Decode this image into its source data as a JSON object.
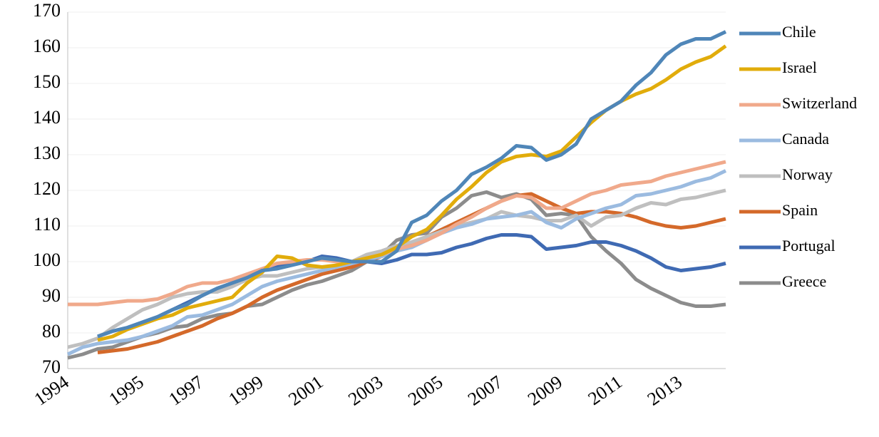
{
  "chart_data": {
    "type": "line",
    "categories": [
      "1994",
      null,
      null,
      null,
      null,
      "1995",
      null,
      null,
      null,
      "1997",
      null,
      null,
      null,
      "1999",
      null,
      null,
      null,
      "2001",
      null,
      null,
      null,
      "2003",
      null,
      null,
      null,
      "2005",
      null,
      null,
      null,
      "2007",
      null,
      null,
      null,
      "2009",
      null,
      null,
      null,
      "2011",
      null,
      null,
      null,
      "2013",
      null,
      null,
      null
    ],
    "ylim": [
      70,
      170
    ],
    "yticks": [
      70,
      80,
      90,
      100,
      110,
      120,
      130,
      140,
      150,
      160,
      170
    ],
    "grid": true,
    "legend": "right",
    "series": [
      {
        "name": "Chile",
        "color": "#4f86b8",
        "values": [
          null,
          null,
          79,
          80.5,
          81.5,
          83,
          84.5,
          86.5,
          88,
          90.5,
          92.5,
          94,
          95.5,
          97.5,
          98,
          99,
          100,
          101,
          100.5,
          100,
          100,
          100,
          103,
          111,
          113,
          117,
          120,
          124.5,
          126.5,
          129,
          132.5,
          132,
          128.5,
          130,
          133,
          140,
          142.5,
          145,
          149.5,
          153,
          158,
          161,
          162.5,
          162.5,
          164.5
        ]
      },
      {
        "name": "Israel",
        "color": "#e1ac0b",
        "values": [
          null,
          null,
          78,
          79,
          81,
          82.5,
          84,
          85,
          87,
          88,
          89,
          90,
          94,
          97,
          101.5,
          101,
          99,
          98.5,
          99,
          100,
          101,
          102,
          104,
          107,
          109,
          113,
          117.5,
          121,
          125,
          128,
          129.5,
          130,
          129.5,
          131,
          135,
          139,
          142.5,
          145,
          147,
          148.5,
          151,
          154,
          156,
          157.5,
          160.5
        ]
      },
      {
        "name": "Switzerland",
        "color": "#f0a98b",
        "values": [
          88,
          88,
          88,
          88.5,
          89,
          89,
          89.5,
          91,
          93,
          94,
          94,
          95,
          96.5,
          98,
          99.5,
          100,
          100.5,
          100.5,
          100,
          100,
          101,
          102,
          103.5,
          104.5,
          106,
          108,
          110.5,
          112.5,
          115,
          117,
          118.5,
          118,
          115,
          115,
          117,
          119,
          120,
          121.5,
          122,
          122.5,
          124,
          125,
          126,
          127,
          128
        ]
      },
      {
        "name": "Canada",
        "color": "#9bbbe0",
        "values": [
          74,
          76,
          77,
          77.5,
          78,
          79,
          80.5,
          82,
          84.5,
          85,
          86.5,
          88,
          90.5,
          93,
          94.5,
          95.5,
          96.5,
          97.5,
          98.5,
          99.5,
          100.5,
          101.5,
          103,
          104,
          106,
          108,
          109.5,
          110.5,
          112,
          112.5,
          113,
          114,
          111,
          109.5,
          112,
          113.5,
          115,
          116,
          118.5,
          119,
          120,
          121,
          122.5,
          123.5,
          125.5
        ]
      },
      {
        "name": "Norway",
        "color": "#bfbfbf",
        "values": [
          76,
          77,
          78.5,
          81.5,
          84,
          86.5,
          88,
          90,
          91,
          91.5,
          91.5,
          93,
          95,
          96,
          96,
          97,
          98,
          98.5,
          98.5,
          100,
          102,
          103,
          104.5,
          105.5,
          107,
          108.5,
          110,
          111,
          112,
          114,
          113,
          112.5,
          111.5,
          111.5,
          113,
          110,
          112.5,
          113,
          115,
          116.5,
          116,
          117.5,
          118,
          119,
          120
        ]
      },
      {
        "name": "Spain",
        "color": "#d4692a",
        "values": [
          null,
          null,
          74.5,
          75,
          75.5,
          76.5,
          77.5,
          79,
          80.5,
          82,
          84,
          85.5,
          87.5,
          90,
          92,
          93.5,
          95,
          96.5,
          97.5,
          98.5,
          100,
          101.5,
          103,
          105,
          107,
          109,
          111,
          113,
          115,
          117,
          118.5,
          119,
          117,
          115,
          113.5,
          114,
          114,
          113.5,
          112.5,
          111,
          110,
          109.5,
          110,
          111,
          112
        ]
      },
      {
        "name": "Portugal",
        "color": "#3f6ab3",
        "values": [
          null,
          null,
          79,
          80.5,
          81.5,
          83,
          84.5,
          86.5,
          88.5,
          90.5,
          92.5,
          94,
          95.5,
          97.5,
          98.5,
          99.5,
          100,
          101.5,
          101,
          100,
          100,
          99.5,
          100.5,
          102,
          102,
          102.5,
          104,
          105,
          106.5,
          107.5,
          107.5,
          107,
          103.5,
          104,
          104.5,
          105.5,
          105.5,
          104.5,
          103,
          101,
          98.5,
          97.5,
          98,
          98.5,
          99.5
        ]
      },
      {
        "name": "Greece",
        "color": "#8c8c8c",
        "values": [
          73,
          74,
          75.5,
          76,
          77.5,
          79,
          80,
          81.5,
          82,
          84,
          85,
          85.5,
          87.5,
          88,
          90,
          92,
          93.5,
          94.5,
          96,
          97.5,
          100,
          102,
          106,
          107.5,
          108,
          112.5,
          115,
          118.5,
          119.5,
          118,
          119,
          117.5,
          113,
          113.5,
          113,
          107,
          103,
          99.5,
          95,
          92.5,
          90.5,
          88.5,
          87.5,
          87.5,
          88
        ]
      }
    ]
  }
}
